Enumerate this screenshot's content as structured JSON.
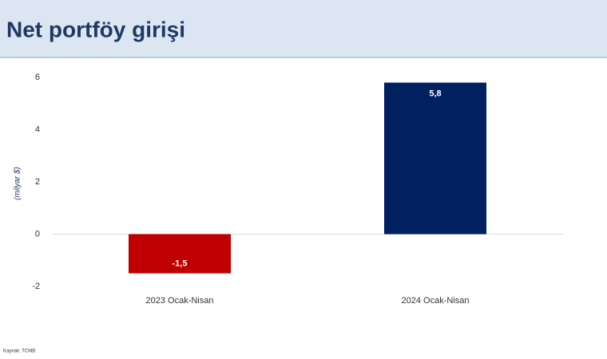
{
  "chart_data": {
    "type": "bar",
    "title": "Net portföy girişi",
    "y_label": "(milyar $)",
    "source": "Kaynak: TCMB",
    "categories": [
      "2023 Ocak-Nisan",
      "2024 Ocak-Nisan"
    ],
    "values": [
      -1.5,
      5.8
    ],
    "value_labels": [
      "-1,5",
      "5,8"
    ],
    "colors": [
      "#c00000",
      "#002060"
    ],
    "ylim": [
      -2,
      6
    ],
    "yticks": [
      -2,
      0,
      2,
      4,
      6
    ],
    "grid": false
  }
}
